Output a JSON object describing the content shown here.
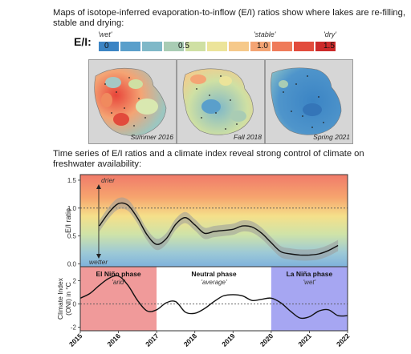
{
  "heading_maps": "Maps of isotope-inferred evaporation-to-inflow (E/I) ratios show where lakes are re-filling, stable and drying:",
  "heading_series": "Time series of E/I ratios and a climate index reveal strong control of climate on freshwater availability:",
  "legend": {
    "label": "E/I:",
    "wet_label": "'wet'",
    "stable_label": "'stable'",
    "dry_label": "'dry'",
    "tick_labels": [
      "0",
      "0.5",
      "1.0",
      "1.5"
    ],
    "colors": [
      "#3b84c4",
      "#5a9fcb",
      "#7fb8c8",
      "#a9ccb4",
      "#cfe0a3",
      "#ece49a",
      "#f6c98a",
      "#f4a474",
      "#ef7b5a",
      "#e24b3c",
      "#cc2a2a"
    ]
  },
  "maps": [
    {
      "caption": "Summer 2016",
      "theme": "mixed-red"
    },
    {
      "caption": "Fall 2018",
      "theme": "mixed-green"
    },
    {
      "caption": "Spring 2021",
      "theme": "blue"
    }
  ],
  "chart_data": [
    {
      "type": "line",
      "ylabel": "E/I ratio",
      "ylim": [
        -0.05,
        1.6
      ],
      "yticks": [
        "0.0",
        "0.5",
        "1.0",
        "1.5"
      ],
      "annotations": {
        "top": "drier",
        "bottom": "wetter"
      },
      "reference_line": 1.0,
      "x": [
        2015.5,
        2015.75,
        2016.0,
        2016.25,
        2016.5,
        2016.75,
        2017.0,
        2017.25,
        2017.5,
        2017.75,
        2018.0,
        2018.25,
        2018.5,
        2018.75,
        2019.0,
        2019.25,
        2019.5,
        2019.75,
        2020.0,
        2020.25,
        2020.5,
        2020.75,
        2021.0,
        2021.25,
        2021.5,
        2021.75
      ],
      "values": [
        0.68,
        0.92,
        1.08,
        1.05,
        0.82,
        0.52,
        0.35,
        0.45,
        0.71,
        0.83,
        0.7,
        0.55,
        0.58,
        0.6,
        0.62,
        0.68,
        0.66,
        0.55,
        0.38,
        0.22,
        0.18,
        0.16,
        0.16,
        0.18,
        0.24,
        0.33
      ],
      "band": 0.1
    },
    {
      "type": "line",
      "ylabel": "Climate Index (ONI) in °C",
      "ylim": [
        -2.3,
        3.2
      ],
      "yticks": [
        "-2",
        "0",
        "2"
      ],
      "x": [
        2015.0,
        2015.25,
        2015.5,
        2015.75,
        2016.0,
        2016.25,
        2016.5,
        2016.75,
        2017.0,
        2017.25,
        2017.5,
        2017.75,
        2018.0,
        2018.25,
        2018.5,
        2018.75,
        2019.0,
        2019.25,
        2019.5,
        2019.75,
        2020.0,
        2020.25,
        2020.5,
        2020.75,
        2021.0,
        2021.25,
        2021.5,
        2021.75,
        2022.0
      ],
      "values": [
        0.5,
        0.9,
        1.6,
        2.2,
        2.4,
        1.6,
        0.3,
        -0.6,
        -0.5,
        0.1,
        0.2,
        -0.7,
        -0.8,
        -0.4,
        0.2,
        0.7,
        0.8,
        0.7,
        0.3,
        0.4,
        0.5,
        0.1,
        -0.6,
        -1.2,
        -1.1,
        -0.6,
        -0.5,
        -1.0,
        -1.0
      ],
      "reference_line": 0,
      "phases": [
        {
          "name": "El Niño phase",
          "desc": "'arid'",
          "start": 2015,
          "end": 2017,
          "color": "#f09a9a"
        },
        {
          "name": "Neutral phase",
          "desc": "'average'",
          "start": 2017,
          "end": 2020,
          "color": "#ffffff"
        },
        {
          "name": "La Niña phase",
          "desc": "'wet'",
          "start": 2020,
          "end": 2022,
          "color": "#a6a6f2"
        }
      ],
      "xticks": [
        "2015",
        "2016",
        "2017",
        "2018",
        "2019",
        "2020",
        "2021",
        "2022"
      ],
      "xlim": [
        2015,
        2022
      ]
    }
  ]
}
